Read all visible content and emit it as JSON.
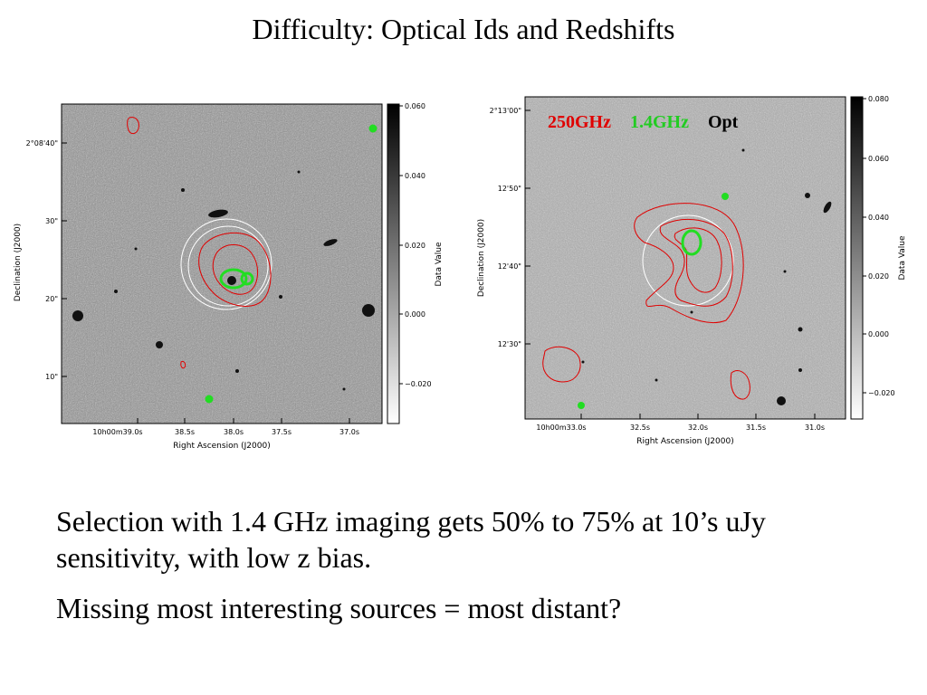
{
  "title": "Difficulty: Optical Ids and Redshifts",
  "panels": [
    {
      "ylabel": "Declination (J2000)",
      "xlabel": "Right Ascension (J2000)",
      "yticks": [
        "2°08'40\"",
        "30\"",
        "20\"",
        "10\""
      ],
      "xticks": [
        "10h00m39.0s",
        "38.5s",
        "38.0s",
        "37.5s",
        "37.0s"
      ],
      "colorbar_label": "Data Value",
      "colorbar_ticks": [
        "0.060",
        "0.040",
        "0.020",
        "0.000",
        "−0.020"
      ]
    },
    {
      "ylabel": "Declination (J2000)",
      "xlabel": "Right Ascension (J2000)",
      "yticks": [
        "2°13'00\"",
        "12'50\"",
        "12'40\"",
        "12'30\""
      ],
      "xticks": [
        "10h00m33.0s",
        "32.5s",
        "32.0s",
        "31.5s",
        "31.0s"
      ],
      "colorbar_label": "Data Value",
      "colorbar_ticks": [
        "0.080",
        "0.060",
        "0.040",
        "0.020",
        "0.000",
        "−0.020"
      ]
    }
  ],
  "legend": [
    {
      "label": "250GHz",
      "color": "#e00000"
    },
    {
      "label": "1.4GHz",
      "color": "#22cc22"
    },
    {
      "label": "Opt",
      "color": "#000000"
    }
  ],
  "body": [
    "Selection with 1.4 GHz  imaging gets 50% to 75% at 10’s uJy sensitivity, with low z bias.",
    "Missing most interesting sources = most distant?"
  ]
}
